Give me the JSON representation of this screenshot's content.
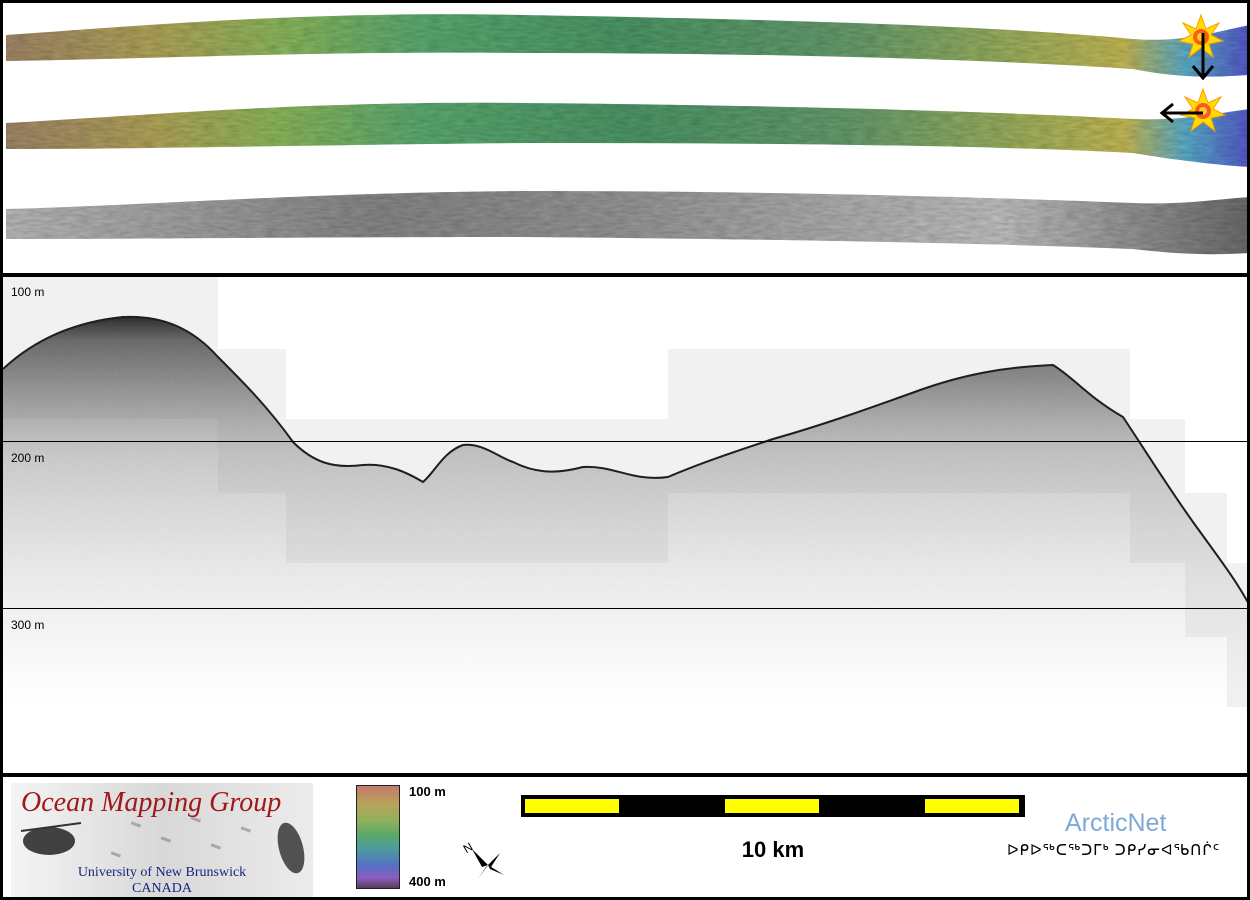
{
  "colors": {
    "frame": "#000000",
    "omg_title": "#a01818",
    "university_text": "#1a237e",
    "scalebar_fill": "#ffff00",
    "scalebar_gap": "#000000",
    "arcticnet_text": "#7fa9d6"
  },
  "profile": {
    "depth_labels": [
      {
        "id": "100",
        "text": "100 m"
      },
      {
        "id": "200",
        "text": "200 m"
      },
      {
        "id": "300",
        "text": "300 m"
      }
    ]
  },
  "legend": {
    "group_name": "Ocean Mapping Group",
    "university": "University of New Brunswick",
    "country": "CANADA",
    "colorbar_top_label": "100 m",
    "colorbar_bottom_label": "400 m",
    "scale_label": "10 km",
    "compass_letter": "N",
    "partner_name": "ArcticNet",
    "partner_subtitle": "ᐅᑭᐅᖅᑕᖅᑐᒥᒃ ᑐᑭᓯᓂᐊᖃᑎᒌᑦ"
  },
  "icons": {
    "sun_marker": "sun-burst-icon",
    "down_arrow": "arrow-down-icon",
    "left_arrow": "arrow-left-icon",
    "north_arrow": "compass-icon"
  }
}
